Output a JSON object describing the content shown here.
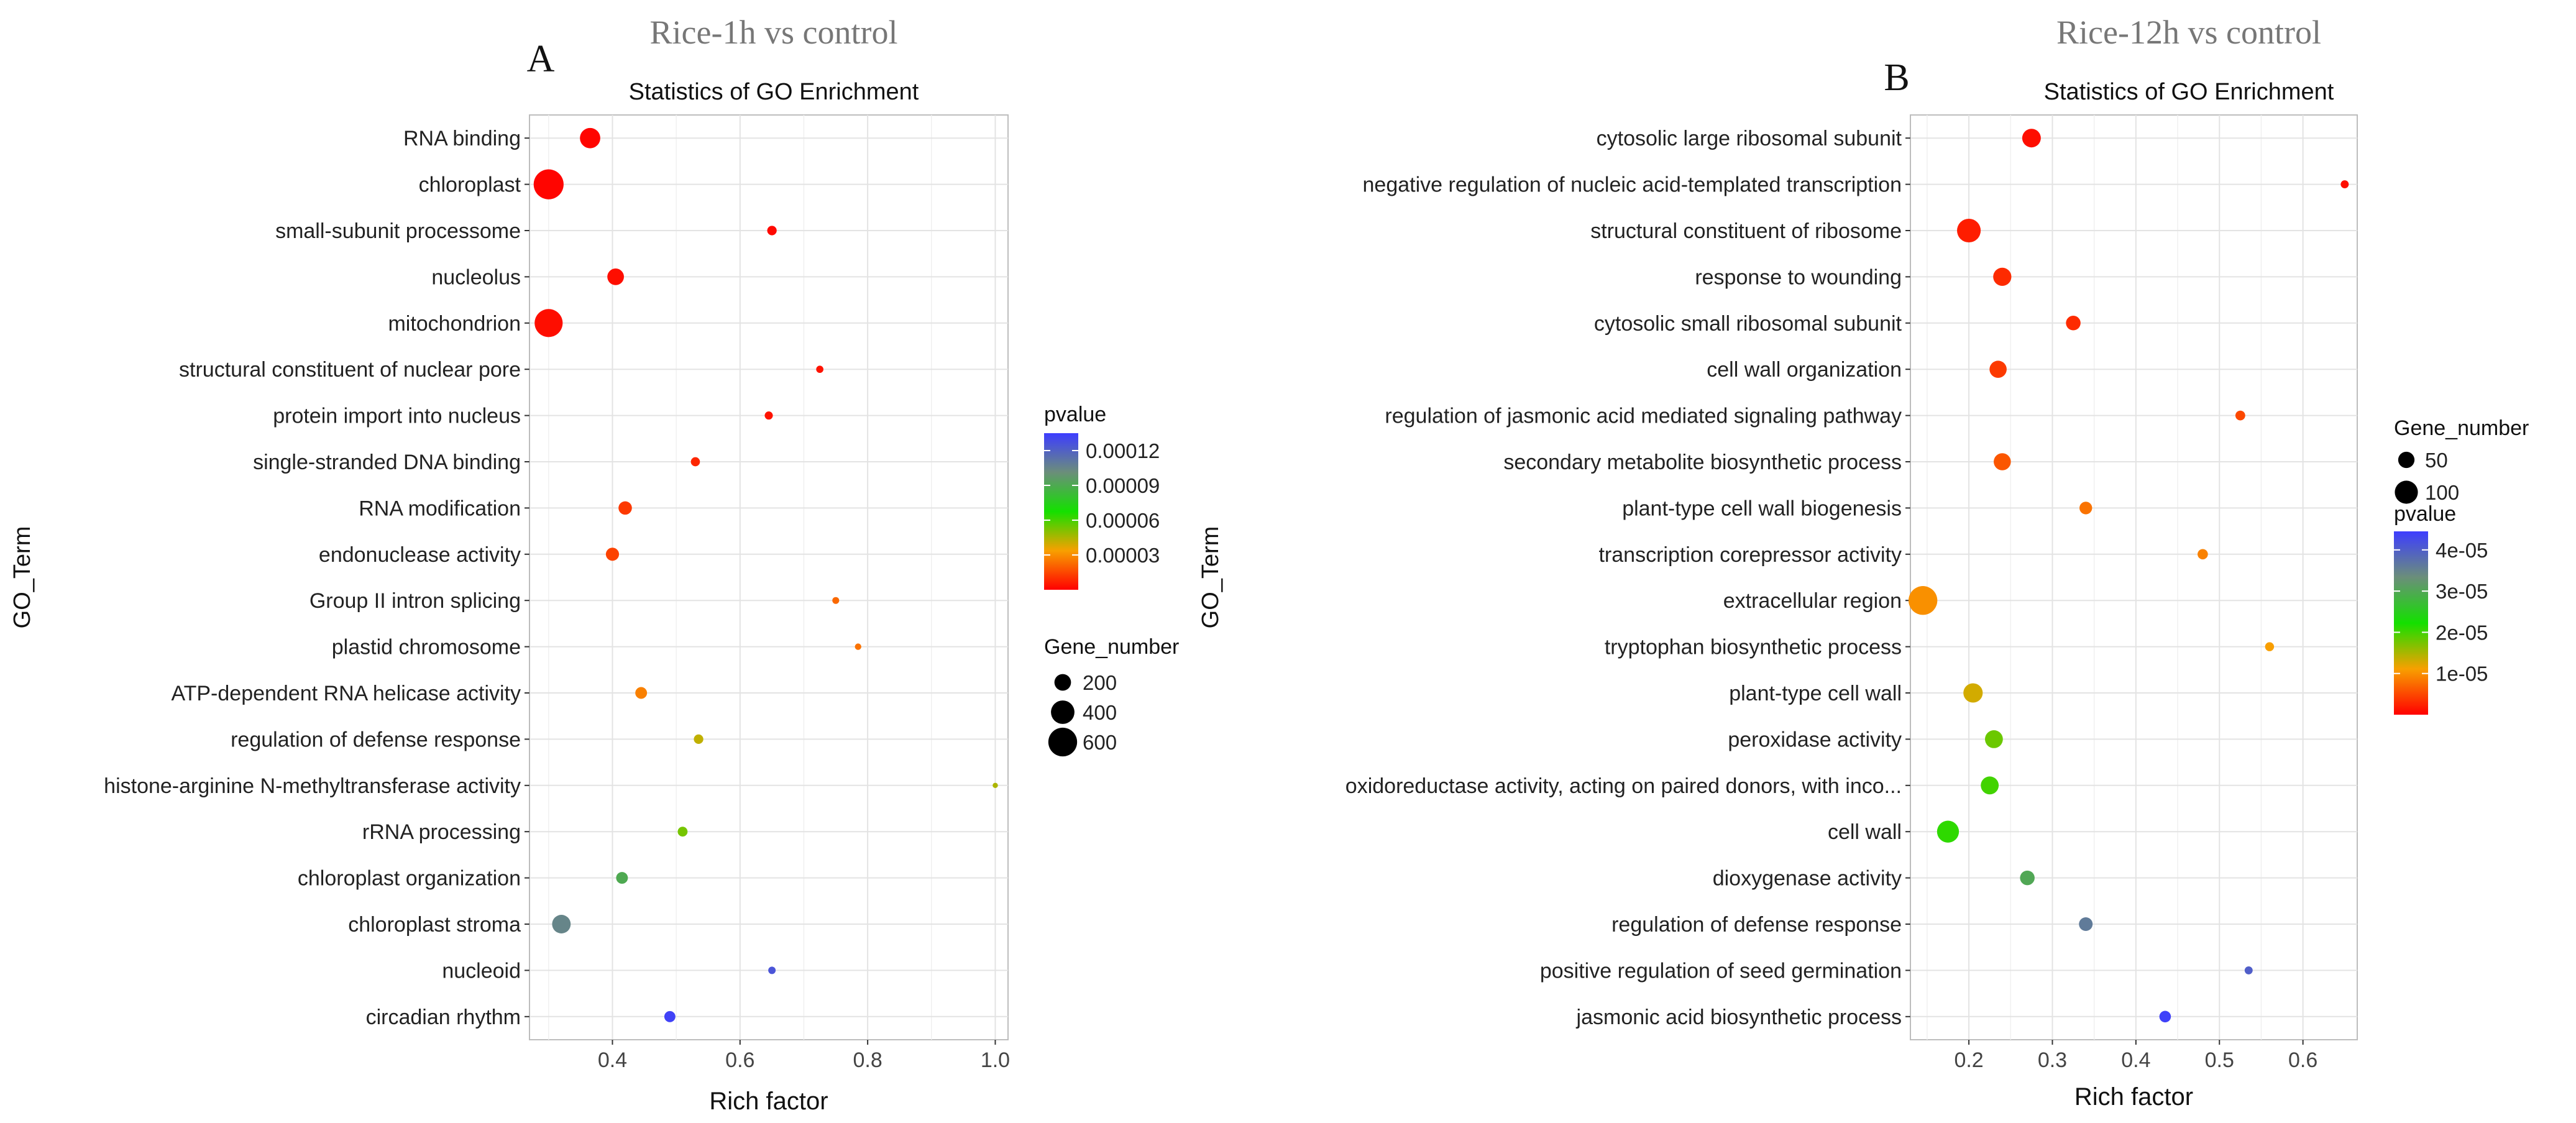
{
  "chart_data": [
    {
      "type": "scatter",
      "condition_title": "Rice-1h vs control",
      "panel_label": "A",
      "title": "Statistics of GO Enrichment",
      "xlabel": "Rich factor",
      "ylabel": "GO_Term",
      "xlim": [
        0.27,
        1.02
      ],
      "xticks": [
        0.4,
        0.6,
        0.8,
        1.0
      ],
      "xtick_labels": [
        "0.4",
        "0.6",
        "0.8",
        "1.0"
      ],
      "color_title": "pvalue",
      "color_range": [
        0.0,
        0.000135
      ],
      "color_ticks": [
        3e-05,
        6e-05,
        9e-05,
        0.00012
      ],
      "color_tick_labels": [
        "0.00003",
        "0.00006",
        "0.00009",
        "0.00012"
      ],
      "color_stops": [
        "#ff0000",
        "#f8a000",
        "#14e000",
        "#6b8e7a",
        "#3d3dff"
      ],
      "size_title": "Gene_number",
      "size_legend_values": [
        200,
        400,
        600
      ],
      "size_legend_labels": [
        "200",
        "400",
        "600"
      ],
      "size_range": [
        0,
        700
      ],
      "legend_order": [
        "color",
        "size"
      ],
      "terms": [
        {
          "term": "RNA binding",
          "rich_factor": 0.365,
          "gene_number": 300,
          "pvalue": 1e-06
        },
        {
          "term": "chloroplast",
          "rich_factor": 0.3,
          "gene_number": 650,
          "pvalue": 1e-06
        },
        {
          "term": "small-subunit processome",
          "rich_factor": 0.65,
          "gene_number": 65,
          "pvalue": 2e-06
        },
        {
          "term": "nucleolus",
          "rich_factor": 0.405,
          "gene_number": 200,
          "pvalue": 3e-06
        },
        {
          "term": "mitochondrion",
          "rich_factor": 0.3,
          "gene_number": 570,
          "pvalue": 3e-06
        },
        {
          "term": "structural constituent of nuclear pore",
          "rich_factor": 0.725,
          "gene_number": 38,
          "pvalue": 4e-06
        },
        {
          "term": "protein import into nucleus",
          "rich_factor": 0.645,
          "gene_number": 48,
          "pvalue": 4e-06
        },
        {
          "term": "single-stranded DNA binding",
          "rich_factor": 0.53,
          "gene_number": 60,
          "pvalue": 8e-06
        },
        {
          "term": "RNA modification",
          "rich_factor": 0.42,
          "gene_number": 130,
          "pvalue": 1.2e-05
        },
        {
          "term": "endonuclease activity",
          "rich_factor": 0.4,
          "gene_number": 125,
          "pvalue": 1.4e-05
        },
        {
          "term": "Group II intron splicing",
          "rich_factor": 0.75,
          "gene_number": 34,
          "pvalue": 2.2e-05
        },
        {
          "term": "plastid chromosome",
          "rich_factor": 0.785,
          "gene_number": 30,
          "pvalue": 2.4e-05
        },
        {
          "term": "ATP-dependent RNA helicase activity",
          "rich_factor": 0.445,
          "gene_number": 100,
          "pvalue": 2.7e-05
        },
        {
          "term": "regulation of defense response",
          "rich_factor": 0.535,
          "gene_number": 65,
          "pvalue": 4.2e-05
        },
        {
          "term": "histone-arginine N-methyltransferase activity",
          "rich_factor": 1.0,
          "gene_number": 20,
          "pvalue": 4.5e-05
        },
        {
          "term": "rRNA processing",
          "rich_factor": 0.51,
          "gene_number": 70,
          "pvalue": 5.3e-05
        },
        {
          "term": "chloroplast organization",
          "rich_factor": 0.415,
          "gene_number": 100,
          "pvalue": 9e-05
        },
        {
          "term": "chloroplast stroma",
          "rich_factor": 0.32,
          "gene_number": 250,
          "pvalue": 0.000105
        },
        {
          "term": "nucleoid",
          "rich_factor": 0.65,
          "gene_number": 40,
          "pvalue": 0.000125
        },
        {
          "term": "circadian rhythm",
          "rich_factor": 0.49,
          "gene_number": 90,
          "pvalue": 0.000133
        }
      ]
    },
    {
      "type": "scatter",
      "condition_title": "Rice-12h vs control",
      "panel_label": "B",
      "title": "Statistics of GO Enrichment",
      "xlabel": "Rich factor",
      "ylabel": "GO_Term",
      "xlim": [
        0.13,
        0.665
      ],
      "xticks": [
        0.2,
        0.3,
        0.4,
        0.5,
        0.6
      ],
      "xtick_labels": [
        "0.2",
        "0.3",
        "0.4",
        "0.5",
        "0.6"
      ],
      "color_title": "pvalue",
      "color_range": [
        0.0,
        4.45e-05
      ],
      "color_ticks": [
        1e-05,
        2e-05,
        3e-05,
        4e-05
      ],
      "color_tick_labels": [
        "1e-05",
        "2e-05",
        "3e-05",
        "4e-05"
      ],
      "color_stops": [
        "#ff0000",
        "#f8a000",
        "#14e000",
        "#6b8e7a",
        "#3d3dff"
      ],
      "size_title": "Gene_number",
      "size_legend_values": [
        50,
        100
      ],
      "size_legend_labels": [
        "50",
        "100"
      ],
      "size_range": [
        0,
        140
      ],
      "legend_order": [
        "size",
        "color"
      ],
      "terms": [
        {
          "term": "cytosolic large ribosomal subunit",
          "rich_factor": 0.275,
          "gene_number": 65,
          "pvalue": 1e-06
        },
        {
          "term": "negative regulation of nucleic acid-templated transcription",
          "rich_factor": 0.65,
          "gene_number": 12,
          "pvalue": 1e-06
        },
        {
          "term": "structural constituent of ribosome",
          "rich_factor": 0.2,
          "gene_number": 105,
          "pvalue": 2e-06
        },
        {
          "term": "response to wounding",
          "rich_factor": 0.24,
          "gene_number": 62,
          "pvalue": 3e-06
        },
        {
          "term": "cytosolic small ribosomal subunit",
          "rich_factor": 0.325,
          "gene_number": 40,
          "pvalue": 3e-06
        },
        {
          "term": "cell wall organization",
          "rich_factor": 0.235,
          "gene_number": 55,
          "pvalue": 4e-06
        },
        {
          "term": "regulation of jasmonic acid mediated signaling pathway",
          "rich_factor": 0.525,
          "gene_number": 18,
          "pvalue": 5e-06
        },
        {
          "term": "secondary metabolite biosynthetic process",
          "rich_factor": 0.24,
          "gene_number": 55,
          "pvalue": 6e-06
        },
        {
          "term": "plant-type cell wall biogenesis",
          "rich_factor": 0.34,
          "gene_number": 30,
          "pvalue": 8e-06
        },
        {
          "term": "transcription corepressor activity",
          "rich_factor": 0.48,
          "gene_number": 20,
          "pvalue": 9e-06
        },
        {
          "term": "extracellular region",
          "rich_factor": 0.145,
          "gene_number": 155,
          "pvalue": 1e-05
        },
        {
          "term": "tryptophan biosynthetic process",
          "rich_factor": 0.56,
          "gene_number": 15,
          "pvalue": 1.1e-05
        },
        {
          "term": "plant-type cell wall",
          "rich_factor": 0.205,
          "gene_number": 70,
          "pvalue": 1.3e-05
        },
        {
          "term": "peroxidase activity",
          "rich_factor": 0.23,
          "gene_number": 60,
          "pvalue": 1.8e-05
        },
        {
          "term": "oxidoreductase activity, acting on paired donors, with inco...",
          "rich_factor": 0.225,
          "gene_number": 60,
          "pvalue": 2e-05
        },
        {
          "term": "cell wall",
          "rich_factor": 0.175,
          "gene_number": 90,
          "pvalue": 2.1e-05
        },
        {
          "term": "dioxygenase activity",
          "rich_factor": 0.27,
          "gene_number": 40,
          "pvalue": 3e-05
        },
        {
          "term": "regulation of defense response",
          "rich_factor": 0.34,
          "gene_number": 35,
          "pvalue": 3.6e-05
        },
        {
          "term": "positive regulation of seed germination",
          "rich_factor": 0.535,
          "gene_number": 12,
          "pvalue": 4e-05
        },
        {
          "term": "jasmonic acid biosynthetic process",
          "rich_factor": 0.435,
          "gene_number": 25,
          "pvalue": 4.4e-05
        }
      ]
    }
  ]
}
